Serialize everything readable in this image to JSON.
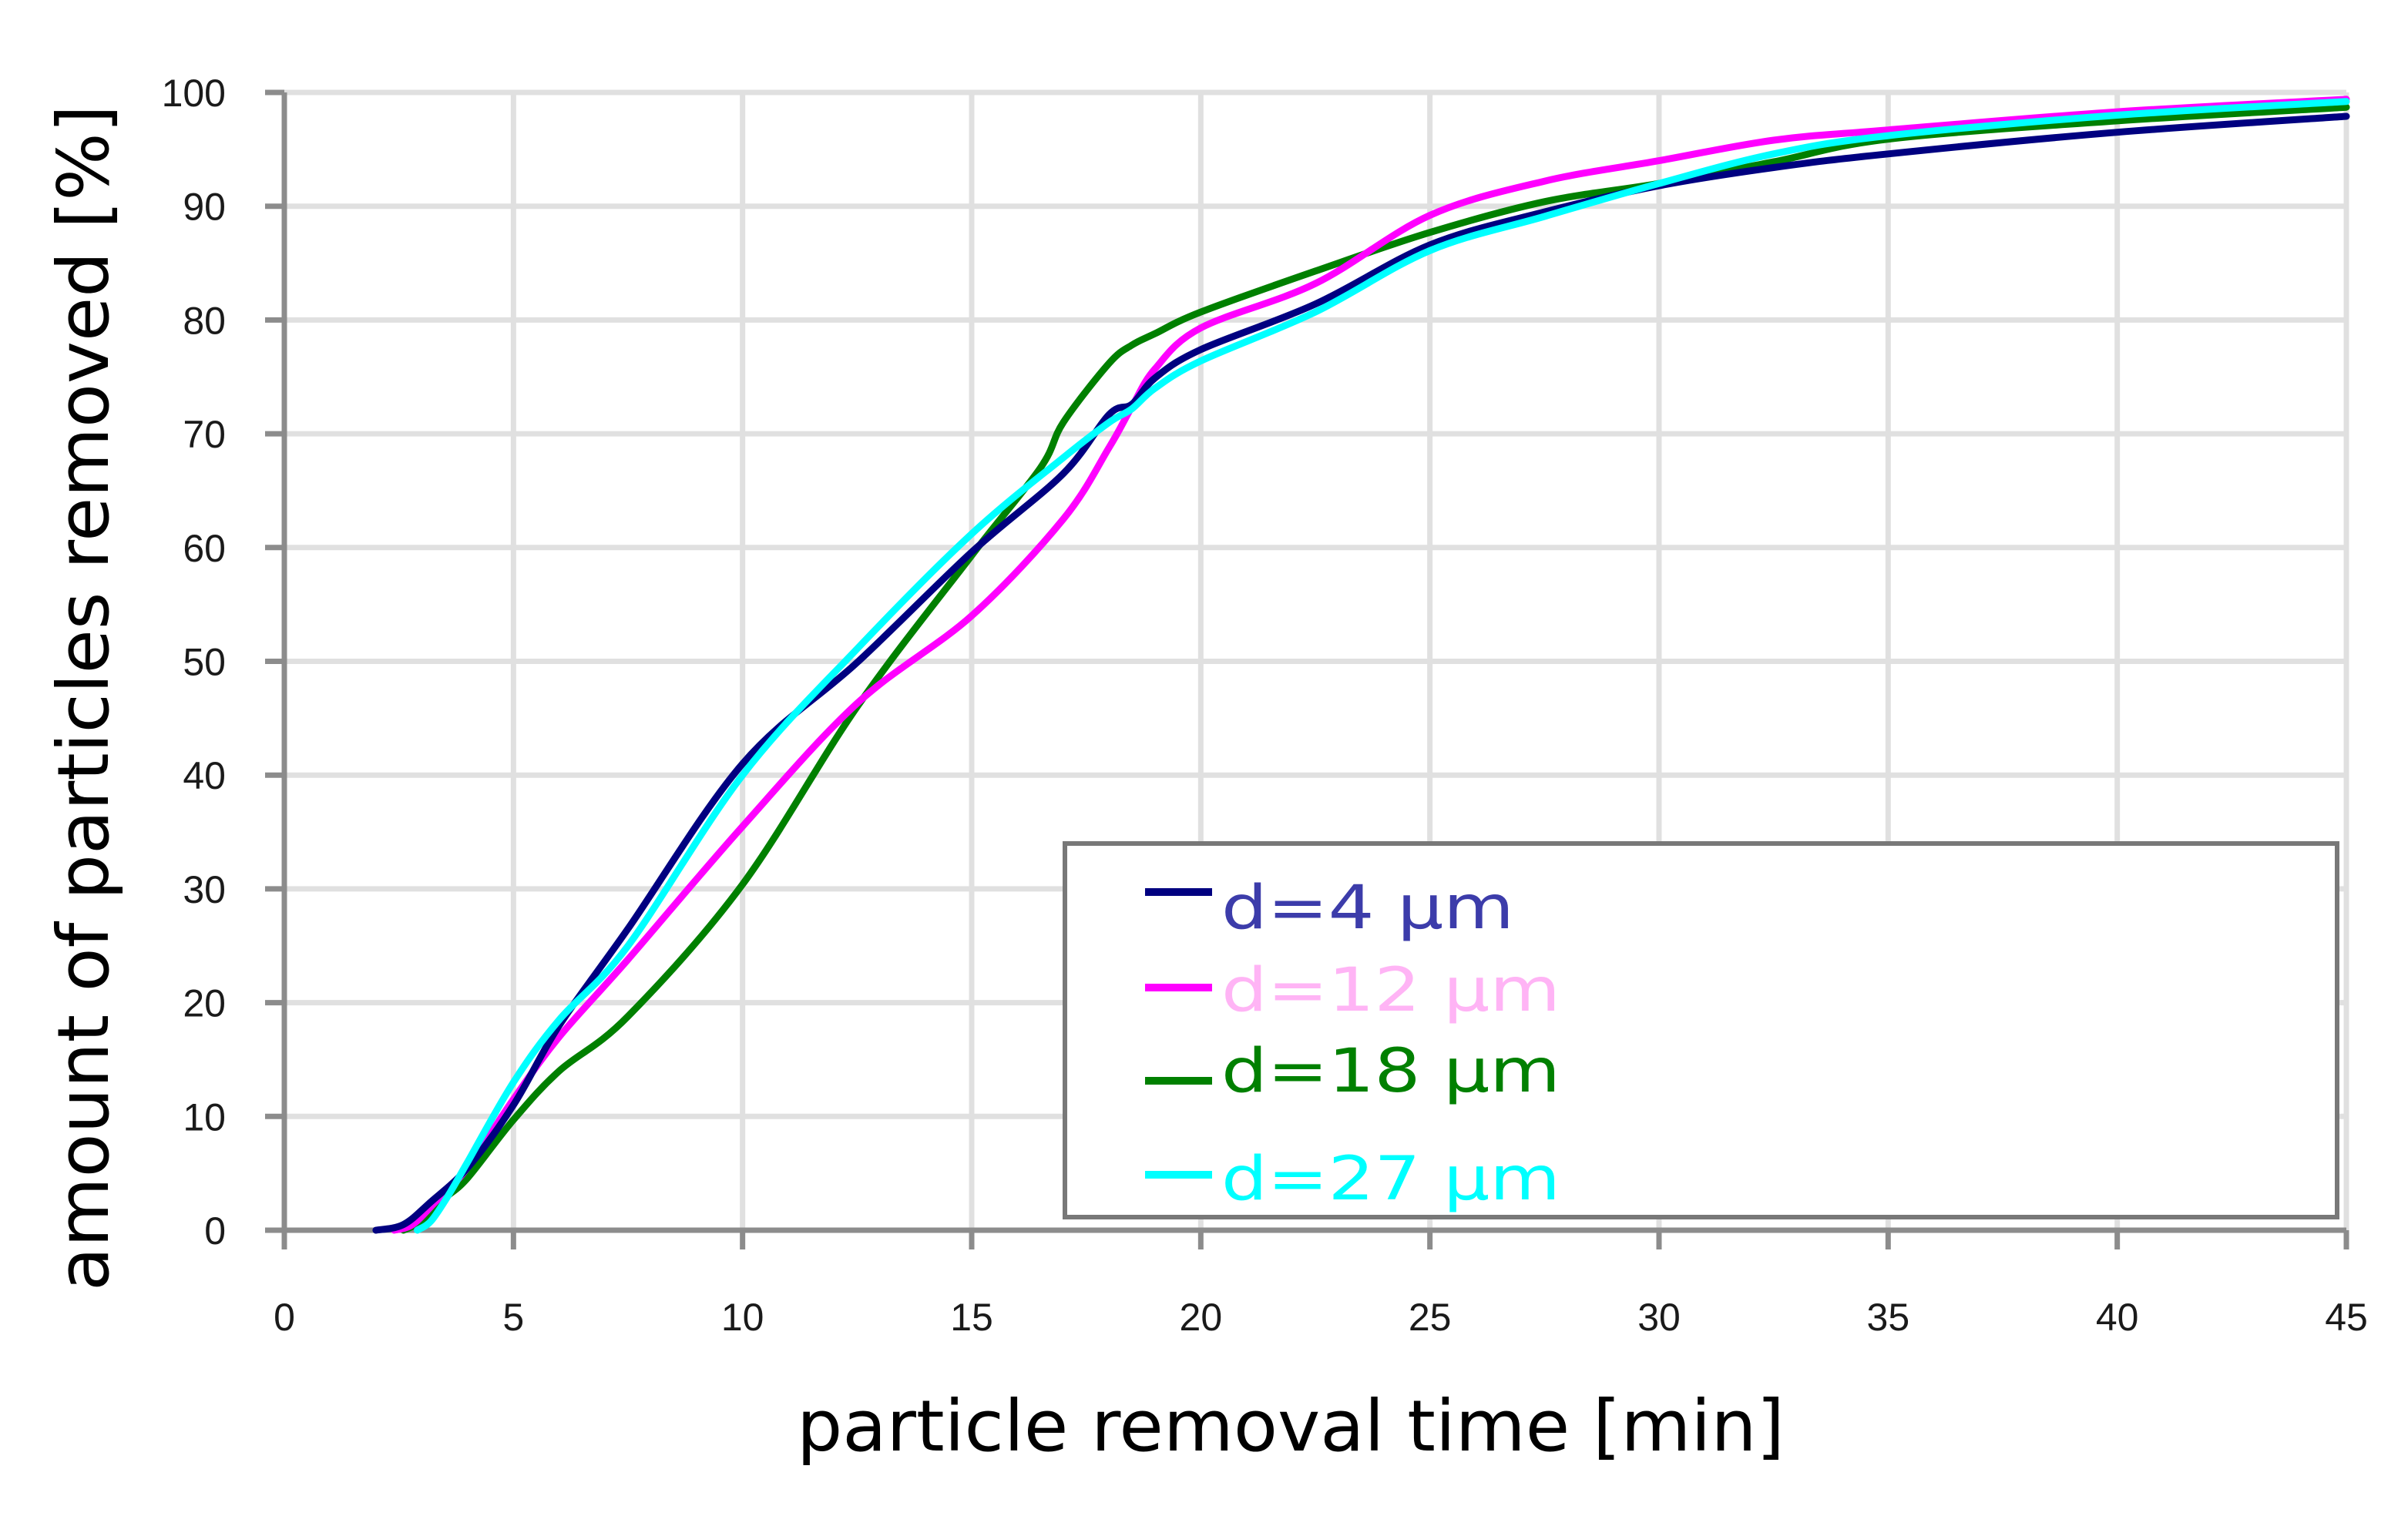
{
  "chart_data": {
    "type": "line",
    "title": "",
    "xlabel": "particle removal time [min]",
    "ylabel": "amount of particles removed [%]",
    "xlim": [
      0,
      45
    ],
    "ylim": [
      0,
      100
    ],
    "xticks": [
      0,
      5,
      10,
      15,
      20,
      25,
      30,
      35,
      40,
      45
    ],
    "yticks": [
      0,
      10,
      20,
      30,
      40,
      50,
      60,
      70,
      80,
      90,
      100
    ],
    "grid": true,
    "legend_position": "lower right",
    "series": [
      {
        "name": "d=4 µm",
        "line_color": "#000080",
        "text_color": "#3c3caa",
        "x": [
          2.0,
          2.6,
          3.2,
          4.0,
          5.0,
          6.0,
          7.5,
          10.0,
          12.5,
          15.0,
          17.0,
          18.0,
          18.5,
          19.0,
          20.0,
          22.5,
          25.0,
          27.5,
          30.0,
          32.5,
          35.0,
          40.0,
          45.0
        ],
        "y": [
          0,
          0.5,
          2.5,
          5.5,
          11,
          18,
          26.5,
          41,
          49.9,
          59.6,
          66.5,
          71.7,
          72.6,
          74.9,
          77.4,
          81.4,
          86.6,
          89.5,
          91.8,
          93.4,
          94.6,
          96.5,
          97.9
        ]
      },
      {
        "name": "d=12 µm",
        "line_color": "#ff00ff",
        "text_color": "#ffb4f5",
        "x": [
          2.4,
          2.8,
          3.3,
          4.0,
          5.0,
          6.0,
          7.5,
          10.0,
          12.5,
          15.0,
          17.0,
          18.0,
          18.5,
          19.0,
          20.0,
          22.5,
          25.0,
          27.5,
          30.0,
          32.5,
          35.0,
          40.0,
          45.0
        ],
        "y": [
          0,
          0.5,
          2.5,
          5.5,
          11.5,
          17,
          23.8,
          35.5,
          46.3,
          54,
          62.5,
          68.8,
          72.4,
          75.7,
          79.3,
          83.2,
          89.2,
          92.2,
          94,
          95.8,
          96.7,
          98.3,
          99.4
        ]
      },
      {
        "name": "d=18 µm",
        "line_color": "#008000",
        "text_color": "#008000",
        "x": [
          2.6,
          3.0,
          3.5,
          4.0,
          5.0,
          6.0,
          7.5,
          10.0,
          12.5,
          15.0,
          16.5,
          17.0,
          18.0,
          18.5,
          19.0,
          20.0,
          22.5,
          25.0,
          27.5,
          30.0,
          32.5,
          35.0,
          40.0,
          45.0
        ],
        "y": [
          0,
          0.8,
          2.8,
          4.6,
          9.7,
          14,
          18.8,
          30.4,
          46,
          59.3,
          67,
          71,
          76.2,
          77.8,
          78.8,
          80.7,
          84.3,
          87.7,
          90.4,
          92,
          93.9,
          95.9,
          97.5,
          98.7
        ]
      },
      {
        "name": "d=27 µm",
        "line_color": "#00ffff",
        "text_color": "#00ffff",
        "x": [
          2.9,
          3.2,
          3.6,
          4.0,
          5.0,
          6.0,
          7.5,
          10.0,
          12.5,
          15.0,
          17.0,
          18.0,
          18.5,
          19.0,
          20.0,
          22.5,
          25.0,
          27.5,
          30.0,
          32.5,
          35.0,
          40.0,
          45.0
        ],
        "y": [
          0,
          0.8,
          3.2,
          6,
          13,
          18.5,
          25,
          40,
          51.1,
          61.2,
          67.9,
          71,
          72.2,
          74,
          76.4,
          80.7,
          86.1,
          89.1,
          92,
          94.6,
          96.2,
          98,
          99.2
        ]
      }
    ]
  },
  "colors": {
    "gridline": "#e0e0e0",
    "axis": "#8c8c8c",
    "legend_border": "#787878"
  }
}
